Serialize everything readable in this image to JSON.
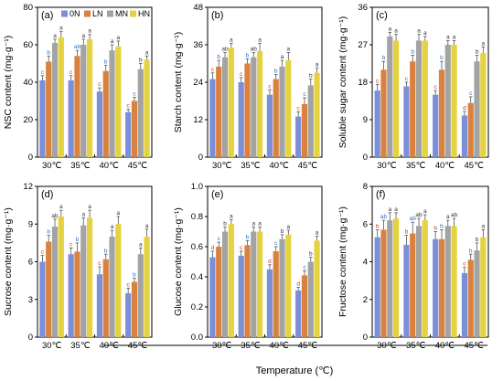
{
  "legend": [
    "0N",
    "LN",
    "MN",
    "HN"
  ],
  "colors": {
    "0N": "#7b8ed8",
    "LN": "#d9813f",
    "MN": "#a3a3a3",
    "HN": "#e4d33e",
    "letter_0N": "#c0392b",
    "letter_LN": "#2a6fc9",
    "letter_MN": "#333333",
    "letter_HN": "#333333",
    "error_bar": "#555555",
    "axis": "#000000"
  },
  "x_title": "Temperature (℃)",
  "chart_data": [
    {
      "id": "a",
      "panel_label": "(a)",
      "type": "bar",
      "ylabel": "NSC content (mg·g⁻¹)",
      "ylim": [
        0,
        80
      ],
      "yticks": [
        "0",
        "20",
        "40",
        "60",
        "80"
      ],
      "categories": [
        "30℃",
        "35℃",
        "40℃",
        "45℃"
      ],
      "series": [
        {
          "name": "0N",
          "values": [
            41,
            41,
            35,
            24
          ],
          "errors": [
            2.5,
            2.5,
            2,
            1.5
          ],
          "letters": [
            "c",
            "c",
            "c",
            "c"
          ]
        },
        {
          "name": "LN",
          "values": [
            51,
            54,
            46,
            30
          ],
          "errors": [
            3,
            3,
            3,
            2
          ],
          "letters": [
            "b",
            "ab",
            "b",
            "c"
          ]
        },
        {
          "name": "MN",
          "values": [
            61,
            60,
            57,
            47
          ],
          "errors": [
            2,
            3,
            3,
            3
          ],
          "letters": [
            "a",
            "a",
            "a",
            "b"
          ]
        },
        {
          "name": "HN",
          "values": [
            64,
            63,
            59,
            52
          ],
          "errors": [
            3,
            2.5,
            3,
            2
          ],
          "letters": [
            "a",
            "a",
            "a",
            "a"
          ]
        }
      ],
      "legend_visible": true
    },
    {
      "id": "b",
      "panel_label": "(b)",
      "type": "bar",
      "ylabel": "Starch content (mg·g⁻¹)",
      "ylim": [
        0,
        48
      ],
      "yticks": [
        "0",
        "12",
        "24",
        "36",
        "48"
      ],
      "categories": [
        "30℃",
        "35℃",
        "40℃",
        "45℃"
      ],
      "series": [
        {
          "name": "0N",
          "values": [
            25,
            24,
            20,
            13
          ],
          "errors": [
            2,
            1.5,
            1.5,
            1.5
          ],
          "letters": [
            "c",
            "c",
            "c",
            "c"
          ]
        },
        {
          "name": "LN",
          "values": [
            29,
            30,
            25,
            17
          ],
          "errors": [
            2,
            1.5,
            1.5,
            2
          ],
          "letters": [
            "b",
            "b",
            "b",
            "c"
          ]
        },
        {
          "name": "MN",
          "values": [
            32,
            32,
            29,
            23
          ],
          "errors": [
            1.5,
            1.5,
            2,
            2
          ],
          "letters": [
            "ab",
            "ab",
            "a",
            "b"
          ]
        },
        {
          "name": "HN",
          "values": [
            35,
            34,
            31,
            27
          ],
          "errors": [
            1.5,
            2.5,
            2.5,
            1.5
          ],
          "letters": [
            "a",
            "a",
            "a",
            "a"
          ]
        }
      ],
      "legend_visible": false
    },
    {
      "id": "c",
      "panel_label": "(c)",
      "type": "bar",
      "ylabel": "Soluble sugar content (mg·g⁻¹)",
      "ylim": [
        0,
        36
      ],
      "yticks": [
        "0",
        "9",
        "18",
        "27",
        "36"
      ],
      "categories": [
        "30℃",
        "35℃",
        "40℃",
        "45℃"
      ],
      "series": [
        {
          "name": "0N",
          "values": [
            16,
            17,
            15,
            10
          ],
          "errors": [
            1.5,
            1,
            1,
            1
          ],
          "letters": [
            "c",
            "c",
            "c",
            "d"
          ]
        },
        {
          "name": "LN",
          "values": [
            21,
            23,
            21,
            13
          ],
          "errors": [
            2,
            1.5,
            2,
            1.5
          ],
          "letters": [
            "b",
            "b",
            "b",
            "c"
          ]
        },
        {
          "name": "MN",
          "values": [
            29,
            28,
            27,
            23
          ],
          "errors": [
            1,
            1.5,
            1,
            1.5
          ],
          "letters": [
            "a",
            "a",
            "a",
            "b"
          ]
        },
        {
          "name": "HN",
          "values": [
            28,
            28,
            27,
            25
          ],
          "errors": [
            1.5,
            1,
            1,
            1.5
          ],
          "letters": [
            "a",
            "a",
            "a",
            "a"
          ]
        }
      ],
      "legend_visible": false
    },
    {
      "id": "d",
      "panel_label": "(d)",
      "type": "bar",
      "ylabel": "Sucrose content (mg·g⁻¹)",
      "ylim": [
        0,
        12
      ],
      "yticks": [
        "0",
        "3",
        "6",
        "9",
        "12"
      ],
      "categories": [
        "30℃",
        "35℃",
        "40℃",
        "45℃"
      ],
      "series": [
        {
          "name": "0N",
          "values": [
            6.0,
            6.6,
            5.0,
            3.5
          ],
          "errors": [
            0.5,
            0.5,
            0.6,
            0.4
          ],
          "letters": [
            "c",
            "c",
            "c",
            "c"
          ]
        },
        {
          "name": "LN",
          "values": [
            7.6,
            6.8,
            6.2,
            4.4
          ],
          "errors": [
            0.5,
            0.7,
            0.4,
            0.3
          ],
          "letters": [
            "b",
            "b",
            "b",
            "b"
          ]
        },
        {
          "name": "MN",
          "values": [
            8.8,
            8.9,
            8.0,
            6.6
          ],
          "errors": [
            0.6,
            0.6,
            0.5,
            0.5
          ],
          "letters": [
            "ab",
            "a",
            "a",
            "a"
          ]
        },
        {
          "name": "HN",
          "values": [
            9.6,
            9.5,
            9.0,
            8.0
          ],
          "errors": [
            0.5,
            0.6,
            0.6,
            0.6
          ],
          "letters": [
            "a",
            "a",
            "a",
            "a"
          ]
        }
      ],
      "legend_visible": false
    },
    {
      "id": "e",
      "panel_label": "(e)",
      "type": "bar",
      "ylabel": "Glucose content (mg·g⁻¹)",
      "ylim": [
        0,
        1.0
      ],
      "yticks": [
        "0.0",
        "0.2",
        "0.4",
        "0.6",
        "0.8",
        "1.0"
      ],
      "categories": [
        "30℃",
        "35℃",
        "40℃",
        "45℃"
      ],
      "series": [
        {
          "name": "0N",
          "values": [
            0.53,
            0.54,
            0.45,
            0.31
          ],
          "errors": [
            0.04,
            0.03,
            0.03,
            0.02
          ],
          "letters": [
            "d",
            "c",
            "d",
            "d"
          ]
        },
        {
          "name": "LN",
          "values": [
            0.6,
            0.61,
            0.57,
            0.41
          ],
          "errors": [
            0.03,
            0.03,
            0.03,
            0.03
          ],
          "letters": [
            "c",
            "b",
            "c",
            "c"
          ]
        },
        {
          "name": "MN",
          "values": [
            0.7,
            0.7,
            0.65,
            0.5
          ],
          "errors": [
            0.03,
            0.03,
            0.03,
            0.03
          ],
          "letters": [
            "b",
            "a",
            "b",
            "b"
          ]
        },
        {
          "name": "HN",
          "values": [
            0.75,
            0.7,
            0.68,
            0.64
          ],
          "errors": [
            0.03,
            0.03,
            0.03,
            0.03
          ],
          "letters": [
            "a",
            "a",
            "a",
            "a"
          ]
        }
      ],
      "legend_visible": false
    },
    {
      "id": "f",
      "panel_label": "(f)",
      "type": "bar",
      "ylabel": "Fructose content (mg·g⁻¹)",
      "ylim": [
        0,
        8
      ],
      "yticks": [
        "0",
        "2",
        "4",
        "6",
        "8"
      ],
      "categories": [
        "30℃",
        "35℃",
        "40℃",
        "45℃"
      ],
      "series": [
        {
          "name": "0N",
          "values": [
            5.3,
            4.9,
            5.2,
            3.4
          ],
          "errors": [
            0.4,
            0.5,
            0.4,
            0.3
          ],
          "letters": [
            "b",
            "b",
            "b",
            "c"
          ]
        },
        {
          "name": "LN",
          "values": [
            5.7,
            5.5,
            5.2,
            4.1
          ],
          "errors": [
            0.5,
            0.6,
            0.5,
            0.3
          ],
          "letters": [
            "ab",
            "ab",
            "b",
            "b"
          ]
        },
        {
          "name": "MN",
          "values": [
            6.2,
            5.9,
            5.9,
            4.6
          ],
          "errors": [
            0.4,
            0.4,
            0.3,
            0.4
          ],
          "letters": [
            "a",
            "ab",
            "a",
            "b"
          ]
        },
        {
          "name": "HN",
          "values": [
            6.3,
            6.2,
            5.9,
            5.3
          ],
          "errors": [
            0.3,
            0.3,
            0.4,
            0.4
          ],
          "letters": [
            "a",
            "a",
            "ab",
            "a"
          ]
        }
      ],
      "legend_visible": false
    }
  ]
}
